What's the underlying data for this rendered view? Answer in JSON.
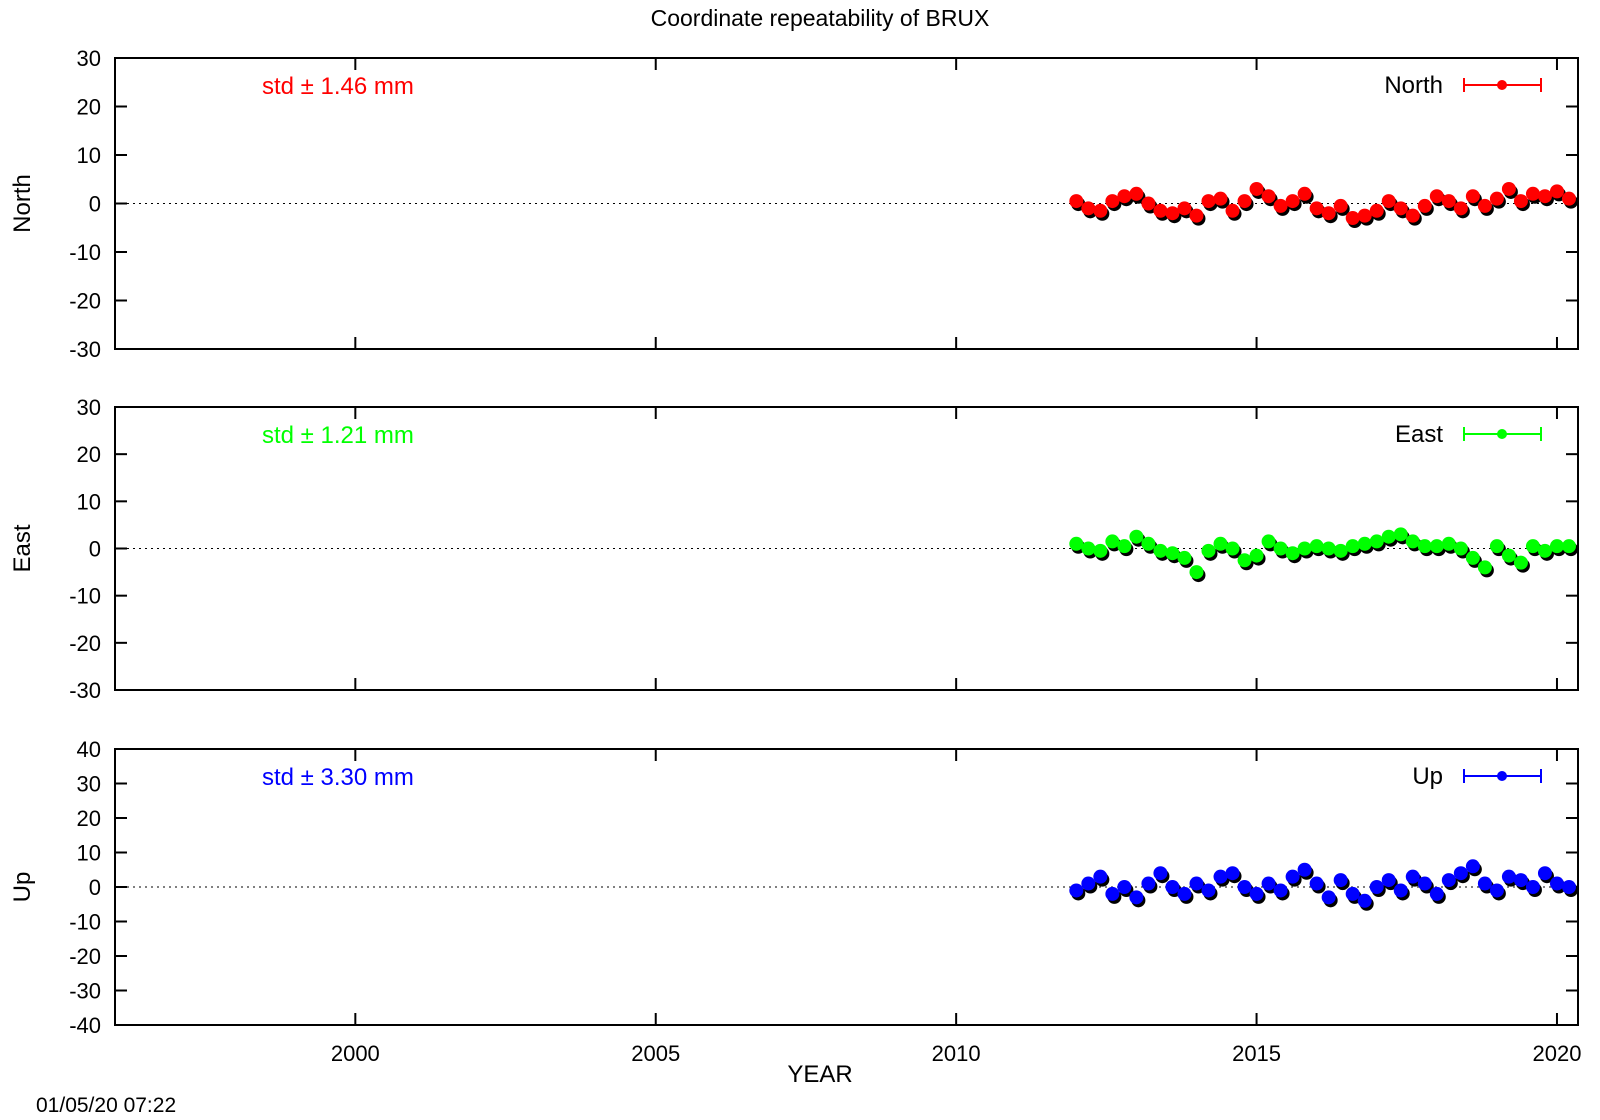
{
  "title": "Coordinate repeatability of BRUX",
  "timestamp": "01/05/20 07:22",
  "xlabel": "YEAR",
  "chart_data": [
    {
      "type": "scatter",
      "panel": "north",
      "ylabel": "North",
      "series_name": "North",
      "color": "#ff0000",
      "std_text": "std ± 1.46 mm",
      "ylim": [
        -30,
        30
      ],
      "yticks": [
        30,
        20,
        10,
        0,
        -10,
        -20,
        -30
      ],
      "xlim": [
        1996.0,
        2020.35
      ],
      "x": [
        2012.0,
        2012.2,
        2012.4,
        2012.6,
        2012.8,
        2013.0,
        2013.2,
        2013.4,
        2013.6,
        2013.8,
        2014.0,
        2014.2,
        2014.4,
        2014.6,
        2014.8,
        2015.0,
        2015.2,
        2015.4,
        2015.6,
        2015.8,
        2016.0,
        2016.2,
        2016.4,
        2016.6,
        2016.8,
        2017.0,
        2017.2,
        2017.4,
        2017.6,
        2017.8,
        2018.0,
        2018.2,
        2018.4,
        2018.6,
        2018.8,
        2019.0,
        2019.2,
        2019.4,
        2019.6,
        2019.8,
        2020.0,
        2020.2
      ],
      "y": [
        0.5,
        -1.0,
        -1.5,
        0.5,
        1.5,
        2.0,
        0.0,
        -1.5,
        -2.0,
        -1.0,
        -2.5,
        0.5,
        1.0,
        -1.5,
        0.5,
        3.0,
        1.5,
        -0.5,
        0.5,
        2.0,
        -1.0,
        -2.0,
        -0.5,
        -3.0,
        -2.5,
        -1.5,
        0.5,
        -1.0,
        -2.5,
        -0.5,
        1.5,
        0.5,
        -1.0,
        1.5,
        -0.5,
        1.0,
        3.0,
        0.5,
        2.0,
        1.5,
        2.5,
        1.0
      ]
    },
    {
      "type": "scatter",
      "panel": "east",
      "ylabel": "East",
      "series_name": "East",
      "color": "#00ff00",
      "std_text": "std ± 1.21 mm",
      "ylim": [
        -30,
        30
      ],
      "yticks": [
        30,
        20,
        10,
        0,
        -10,
        -20,
        -30
      ],
      "xlim": [
        1996.0,
        2020.35
      ],
      "x": [
        2012.0,
        2012.2,
        2012.4,
        2012.6,
        2012.8,
        2013.0,
        2013.2,
        2013.4,
        2013.6,
        2013.8,
        2014.0,
        2014.2,
        2014.4,
        2014.6,
        2014.8,
        2015.0,
        2015.2,
        2015.4,
        2015.6,
        2015.8,
        2016.0,
        2016.2,
        2016.4,
        2016.6,
        2016.8,
        2017.0,
        2017.2,
        2017.4,
        2017.6,
        2017.8,
        2018.0,
        2018.2,
        2018.4,
        2018.6,
        2018.8,
        2019.0,
        2019.2,
        2019.4,
        2019.6,
        2019.8,
        2020.0,
        2020.2
      ],
      "y": [
        1.0,
        0.0,
        -0.5,
        1.5,
        0.5,
        2.5,
        1.0,
        -0.5,
        -1.0,
        -2.0,
        -5.0,
        -0.5,
        1.0,
        0.0,
        -2.5,
        -1.5,
        1.5,
        0.0,
        -1.0,
        0.0,
        0.5,
        0.0,
        -0.5,
        0.5,
        1.0,
        1.5,
        2.5,
        3.0,
        1.5,
        0.5,
        0.5,
        1.0,
        0.0,
        -2.0,
        -4.0,
        0.5,
        -1.5,
        -3.0,
        0.5,
        -0.5,
        0.5,
        0.5
      ]
    },
    {
      "type": "scatter",
      "panel": "up",
      "ylabel": "Up",
      "series_name": "Up",
      "color": "#0000ff",
      "std_text": "std ± 3.30 mm",
      "ylim": [
        -40,
        40
      ],
      "yticks": [
        40,
        30,
        20,
        10,
        0,
        -10,
        -20,
        -30,
        -40
      ],
      "xlim": [
        1996.0,
        2020.35
      ],
      "xticks": [
        2000,
        2005,
        2010,
        2015,
        2020
      ],
      "x": [
        2012.0,
        2012.2,
        2012.4,
        2012.6,
        2012.8,
        2013.0,
        2013.2,
        2013.4,
        2013.6,
        2013.8,
        2014.0,
        2014.2,
        2014.4,
        2014.6,
        2014.8,
        2015.0,
        2015.2,
        2015.4,
        2015.6,
        2015.8,
        2016.0,
        2016.2,
        2016.4,
        2016.6,
        2016.8,
        2017.0,
        2017.2,
        2017.4,
        2017.6,
        2017.8,
        2018.0,
        2018.2,
        2018.4,
        2018.6,
        2018.8,
        2019.0,
        2019.2,
        2019.4,
        2019.6,
        2019.8,
        2020.0,
        2020.2
      ],
      "y": [
        -1.0,
        1.0,
        3.0,
        -2.0,
        0.0,
        -3.0,
        1.0,
        4.0,
        0.0,
        -2.0,
        1.0,
        -1.0,
        3.0,
        4.0,
        0.0,
        -2.0,
        1.0,
        -1.0,
        3.0,
        5.0,
        1.0,
        -3.0,
        2.0,
        -2.0,
        -4.0,
        0.0,
        2.0,
        -1.0,
        3.0,
        1.0,
        -2.0,
        2.0,
        4.0,
        6.0,
        1.0,
        -1.0,
        3.0,
        2.0,
        0.0,
        4.0,
        1.0,
        0.0
      ]
    }
  ]
}
